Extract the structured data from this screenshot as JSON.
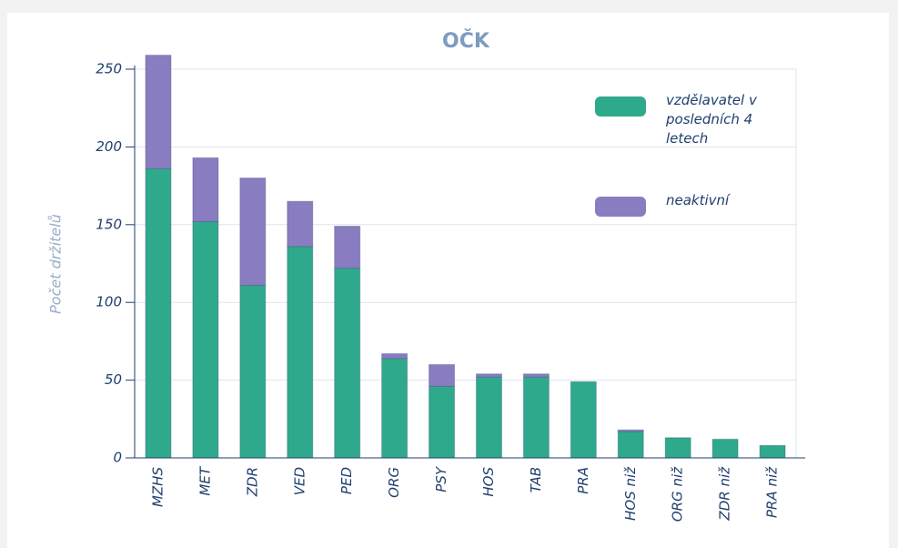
{
  "chart_data": {
    "type": "stacked_bar",
    "title": "OČK",
    "y_label": "Počet držitelů",
    "categories": [
      "MZHS",
      "MET",
      "ZDR",
      "VED",
      "PED",
      "ORG",
      "PSY",
      "HOS",
      "TAB",
      "PRA",
      "HOS niž",
      "ORG niž",
      "ZDR niž",
      "PRA niž"
    ],
    "series": [
      {
        "name": "vzdělavatel v posledních 4 letech",
        "color": "#2fa98b",
        "values": [
          186,
          152,
          111,
          136,
          122,
          64,
          46,
          52,
          52,
          49,
          17,
          13,
          12,
          8
        ]
      },
      {
        "name": "neaktivní",
        "color": "#8a7cc0",
        "values": [
          73,
          41,
          69,
          29,
          27,
          3,
          14,
          2,
          2,
          0,
          1,
          0,
          0,
          0
        ]
      }
    ],
    "ylim": [
      0,
      250
    ],
    "yticks": [
      0,
      50,
      100,
      150,
      200,
      250
    ],
    "grid": true
  }
}
